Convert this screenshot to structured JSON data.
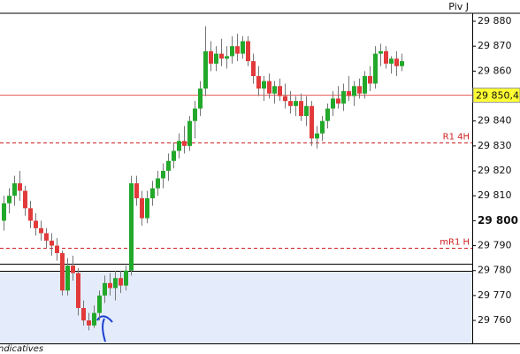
{
  "chart_data": {
    "type": "candlestick",
    "corner_label": "Piv J",
    "footer_label": "ndicatives",
    "ylim": [
      29750.8,
      29883.2
    ],
    "yticks": [
      {
        "value": 29880,
        "label": "29 880"
      },
      {
        "value": 29870,
        "label": "29 870"
      },
      {
        "value": 29860,
        "label": "29 860"
      },
      {
        "value": 29840,
        "label": "29 840"
      },
      {
        "value": 29830,
        "label": "29 830"
      },
      {
        "value": 29820,
        "label": "29 820"
      },
      {
        "value": 29810,
        "label": "29 810"
      },
      {
        "value": 29800,
        "label": "29 800"
      },
      {
        "value": 29790,
        "label": "29 790"
      },
      {
        "value": 29780,
        "label": "29 780"
      },
      {
        "value": 29770,
        "label": "29 770"
      },
      {
        "value": 29760,
        "label": "29 760"
      }
    ],
    "emphasized_ytick": 29800,
    "up_color": "#22a82a",
    "down_color": "#e23a3a",
    "open": [
      29800,
      29807,
      29810,
      29815,
      29812,
      29805,
      29800,
      29797,
      29795,
      29792,
      29790,
      29787,
      29772,
      29782,
      29779,
      29765,
      29760,
      29758,
      29763,
      29770,
      29775,
      29773,
      29777,
      29774,
      29780,
      29815,
      29809,
      29801,
      29809,
      29813,
      29817,
      29820,
      29824,
      29828,
      29832,
      29830,
      29840,
      29845,
      29853,
      29868,
      29863,
      29867,
      29865,
      29866,
      29870,
      29867,
      29872,
      29864,
      29858,
      29853,
      29856,
      29851,
      29854,
      29850,
      29848,
      29846,
      29848,
      29842,
      29846,
      29833,
      29835,
      29840,
      29845,
      29849,
      29847,
      29852,
      29850,
      29854,
      29851,
      29858,
      29855,
      29867,
      29868,
      29863,
      29865,
      29862
    ],
    "high": [
      29810,
      29813,
      29818,
      29820,
      29814,
      29808,
      29803,
      29800,
      29797,
      29795,
      29793,
      29788,
      29785,
      29786,
      29781,
      29768,
      29763,
      29766,
      29772,
      29778,
      29779,
      29780,
      29780,
      29782,
      29818,
      29818,
      29812,
      29812,
      29816,
      29820,
      29823,
      29827,
      29831,
      29835,
      29838,
      29842,
      29848,
      29856,
      29878,
      29872,
      29870,
      29873,
      29870,
      29874,
      29875,
      29874,
      29874,
      29867,
      29862,
      29858,
      29859,
      29856,
      29857,
      29855,
      29852,
      29850,
      29851,
      29850,
      29848,
      29838,
      29842,
      29847,
      29852,
      29854,
      29855,
      29858,
      29856,
      29857,
      29860,
      29862,
      29870,
      29871,
      29870,
      29866,
      29868,
      29867
    ],
    "low": [
      29796,
      29803,
      29806,
      29808,
      29802,
      29797,
      29794,
      29792,
      29789,
      29786,
      29784,
      29770,
      29770,
      29776,
      29762,
      29758,
      29756,
      29757,
      29760,
      29767,
      29770,
      29768,
      29771,
      29772,
      29778,
      29806,
      29798,
      29799,
      29806,
      29810,
      29813,
      29816,
      29821,
      29825,
      29827,
      29828,
      29833,
      29842,
      29850,
      29860,
      29860,
      29862,
      29861,
      29863,
      29864,
      29865,
      29862,
      29855,
      29850,
      29848,
      29849,
      29847,
      29848,
      29845,
      29843,
      29842,
      29840,
      29838,
      29830,
      29829,
      29832,
      29837,
      29842,
      29845,
      29844,
      29848,
      29846,
      29849,
      29849,
      29852,
      29853,
      29862,
      29861,
      29859,
      29858,
      29860
    ],
    "close": [
      29807,
      29810,
      29815,
      29812,
      29805,
      29800,
      29797,
      29795,
      29792,
      29790,
      29787,
      29772,
      29782,
      29779,
      29765,
      29760,
      29758,
      29763,
      29770,
      29775,
      29773,
      29777,
      29774,
      29780,
      29815,
      29809,
      29801,
      29809,
      29813,
      29817,
      29820,
      29824,
      29828,
      29832,
      29830,
      29840,
      29845,
      29853,
      29868,
      29863,
      29867,
      29865,
      29866,
      29870,
      29867,
      29872,
      29864,
      29858,
      29853,
      29856,
      29851,
      29854,
      29850,
      29848,
      29846,
      29848,
      29842,
      29846,
      29833,
      29835,
      29840,
      29845,
      29849,
      29847,
      29852,
      29850,
      29854,
      29851,
      29858,
      29855,
      29867,
      29868,
      29863,
      29865,
      29862,
      29864
    ],
    "levels": [
      {
        "value": 29850.4,
        "label": "29 850,4",
        "style": "solid",
        "color": "#e86060",
        "badge": true
      },
      {
        "value": 29831.4,
        "label": "R1 4H",
        "style": "dashed",
        "color": "#d02020"
      },
      {
        "value": 29789.1,
        "label": "mR1 H",
        "style": "dashed",
        "color": "#d02020"
      },
      {
        "value": 29782.7,
        "style": "solid",
        "color": "#000000"
      },
      {
        "value": 29779.9,
        "style": "solid",
        "color": "#000000"
      }
    ],
    "zone": {
      "from": 29750.8,
      "to": 29779.9,
      "color": "#e4ecfb"
    }
  }
}
